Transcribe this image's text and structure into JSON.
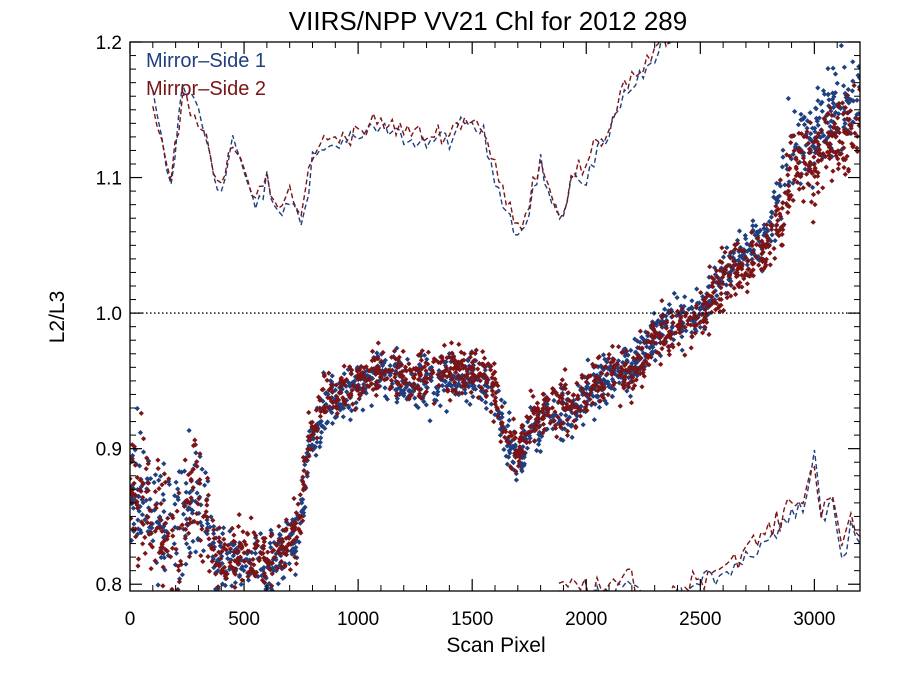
{
  "chart_data": {
    "type": "scatter",
    "title": "VIIRS/NPP VV21 Chl for 2012 289",
    "xlabel": "Scan Pixel",
    "ylabel": "L2/L3",
    "xlim": [
      0,
      3200
    ],
    "ylim": [
      0.795,
      1.2
    ],
    "x_ticks": [
      0,
      500,
      1000,
      1500,
      2000,
      2500,
      3000
    ],
    "x_tick_labels": [
      "0",
      "500",
      "1000",
      "1500",
      "2000",
      "2500",
      "3000"
    ],
    "y_ticks": [
      0.8,
      0.9,
      1.0,
      1.1,
      1.2
    ],
    "y_tick_labels": [
      "0.8",
      "0.9",
      "1.0",
      "1.1",
      "1.2"
    ],
    "reference_line": {
      "y": 1.0,
      "style": "dotted"
    },
    "legend_position": "top-left",
    "series": [
      {
        "name": "Mirror–Side 1",
        "color": "#1f3f7f",
        "marker": "diamond",
        "trend": [
          [
            0,
            0.88
          ],
          [
            60,
            0.87
          ],
          [
            120,
            0.845
          ],
          [
            200,
            0.835
          ],
          [
            280,
            0.86
          ],
          [
            330,
            0.855
          ],
          [
            380,
            0.815
          ],
          [
            450,
            0.82
          ],
          [
            520,
            0.815
          ],
          [
            600,
            0.815
          ],
          [
            680,
            0.825
          ],
          [
            740,
            0.84
          ],
          [
            780,
            0.895
          ],
          [
            850,
            0.93
          ],
          [
            950,
            0.94
          ],
          [
            1050,
            0.95
          ],
          [
            1150,
            0.955
          ],
          [
            1220,
            0.945
          ],
          [
            1300,
            0.95
          ],
          [
            1400,
            0.952
          ],
          [
            1500,
            0.953
          ],
          [
            1580,
            0.945
          ],
          [
            1640,
            0.91
          ],
          [
            1700,
            0.89
          ],
          [
            1760,
            0.915
          ],
          [
            1850,
            0.925
          ],
          [
            1950,
            0.93
          ],
          [
            2000,
            0.94
          ],
          [
            2100,
            0.955
          ],
          [
            2200,
            0.96
          ],
          [
            2300,
            0.985
          ],
          [
            2400,
            0.995
          ],
          [
            2500,
            1.0
          ],
          [
            2600,
            1.03
          ],
          [
            2700,
            1.045
          ],
          [
            2800,
            1.06
          ],
          [
            2900,
            1.12
          ],
          [
            3000,
            1.13
          ],
          [
            3100,
            1.15
          ],
          [
            3200,
            1.16
          ]
        ],
        "upper_dashed": [
          [
            100,
            1.16
          ],
          [
            180,
            1.09
          ],
          [
            230,
            1.17
          ],
          [
            300,
            1.15
          ],
          [
            350,
            1.12
          ],
          [
            400,
            1.085
          ],
          [
            450,
            1.13
          ],
          [
            500,
            1.1
          ],
          [
            550,
            1.08
          ],
          [
            600,
            1.095
          ],
          [
            650,
            1.07
          ],
          [
            700,
            1.085
          ],
          [
            750,
            1.065
          ],
          [
            800,
            1.115
          ],
          [
            900,
            1.125
          ],
          [
            1000,
            1.13
          ],
          [
            1100,
            1.135
          ],
          [
            1200,
            1.13
          ],
          [
            1300,
            1.125
          ],
          [
            1400,
            1.13
          ],
          [
            1500,
            1.14
          ],
          [
            1550,
            1.13
          ],
          [
            1600,
            1.1
          ],
          [
            1650,
            1.08
          ],
          [
            1700,
            1.055
          ],
          [
            1750,
            1.08
          ],
          [
            1800,
            1.11
          ],
          [
            1850,
            1.08
          ],
          [
            1900,
            1.07
          ],
          [
            1950,
            1.1
          ],
          [
            2000,
            1.1
          ],
          [
            2050,
            1.12
          ],
          [
            2100,
            1.13
          ],
          [
            2150,
            1.16
          ],
          [
            2200,
            1.17
          ],
          [
            2250,
            1.175
          ],
          [
            2300,
            1.19
          ],
          [
            2350,
            1.2
          ],
          [
            2400,
            1.2
          ]
        ],
        "lower_dashed": [
          [
            1880,
            0.79
          ],
          [
            1920,
            0.79
          ],
          [
            2120,
            0.79
          ],
          [
            2180,
            0.8
          ],
          [
            2250,
            0.79
          ],
          [
            2400,
            0.79
          ],
          [
            2500,
            0.8
          ],
          [
            2600,
            0.81
          ],
          [
            2700,
            0.82
          ],
          [
            2800,
            0.835
          ],
          [
            2850,
            0.84
          ],
          [
            2900,
            0.86
          ],
          [
            2950,
            0.855
          ],
          [
            3000,
            0.9
          ],
          [
            3030,
            0.85
          ],
          [
            3080,
            0.86
          ],
          [
            3120,
            0.82
          ],
          [
            3160,
            0.84
          ],
          [
            3200,
            0.83
          ]
        ]
      },
      {
        "name": "Mirror–Side 2",
        "color": "#7b1416",
        "marker": "diamond",
        "trend": [
          [
            0,
            0.875
          ],
          [
            60,
            0.865
          ],
          [
            120,
            0.84
          ],
          [
            200,
            0.83
          ],
          [
            280,
            0.865
          ],
          [
            330,
            0.86
          ],
          [
            380,
            0.818
          ],
          [
            450,
            0.824
          ],
          [
            520,
            0.82
          ],
          [
            600,
            0.818
          ],
          [
            680,
            0.828
          ],
          [
            740,
            0.845
          ],
          [
            780,
            0.9
          ],
          [
            850,
            0.935
          ],
          [
            950,
            0.945
          ],
          [
            1050,
            0.955
          ],
          [
            1150,
            0.96
          ],
          [
            1220,
            0.95
          ],
          [
            1300,
            0.955
          ],
          [
            1400,
            0.958
          ],
          [
            1500,
            0.96
          ],
          [
            1580,
            0.95
          ],
          [
            1640,
            0.915
          ],
          [
            1700,
            0.9
          ],
          [
            1760,
            0.92
          ],
          [
            1850,
            0.93
          ],
          [
            1950,
            0.935
          ],
          [
            2000,
            0.945
          ],
          [
            2100,
            0.96
          ],
          [
            2200,
            0.955
          ],
          [
            2300,
            0.98
          ],
          [
            2400,
            0.99
          ],
          [
            2500,
            0.995
          ],
          [
            2600,
            1.025
          ],
          [
            2700,
            1.035
          ],
          [
            2800,
            1.05
          ],
          [
            2900,
            1.1
          ],
          [
            3000,
            1.115
          ],
          [
            3100,
            1.13
          ],
          [
            3200,
            1.14
          ]
        ],
        "upper_dashed": [
          [
            100,
            1.15
          ],
          [
            180,
            1.1
          ],
          [
            230,
            1.165
          ],
          [
            300,
            1.14
          ],
          [
            350,
            1.115
          ],
          [
            400,
            1.09
          ],
          [
            450,
            1.125
          ],
          [
            500,
            1.105
          ],
          [
            550,
            1.085
          ],
          [
            600,
            1.1
          ],
          [
            650,
            1.075
          ],
          [
            700,
            1.09
          ],
          [
            750,
            1.07
          ],
          [
            800,
            1.12
          ],
          [
            900,
            1.13
          ],
          [
            1000,
            1.135
          ],
          [
            1100,
            1.14
          ],
          [
            1200,
            1.135
          ],
          [
            1300,
            1.13
          ],
          [
            1400,
            1.135
          ],
          [
            1500,
            1.145
          ],
          [
            1550,
            1.135
          ],
          [
            1600,
            1.105
          ],
          [
            1650,
            1.085
          ],
          [
            1700,
            1.06
          ],
          [
            1750,
            1.085
          ],
          [
            1800,
            1.115
          ],
          [
            1850,
            1.085
          ],
          [
            1900,
            1.075
          ],
          [
            1950,
            1.105
          ],
          [
            2000,
            1.105
          ],
          [
            2050,
            1.125
          ],
          [
            2100,
            1.135
          ],
          [
            2150,
            1.165
          ],
          [
            2200,
            1.175
          ],
          [
            2250,
            1.18
          ],
          [
            2300,
            1.195
          ],
          [
            2350,
            1.2
          ],
          [
            2400,
            1.2
          ]
        ],
        "lower_dashed": [
          [
            1880,
            0.795
          ],
          [
            1920,
            0.8
          ],
          [
            2120,
            0.795
          ],
          [
            2180,
            0.81
          ],
          [
            2250,
            0.79
          ],
          [
            2400,
            0.795
          ],
          [
            2500,
            0.805
          ],
          [
            2600,
            0.815
          ],
          [
            2700,
            0.825
          ],
          [
            2800,
            0.84
          ],
          [
            2850,
            0.845
          ],
          [
            2900,
            0.865
          ],
          [
            2950,
            0.86
          ],
          [
            3000,
            0.89
          ],
          [
            3030,
            0.855
          ],
          [
            3080,
            0.87
          ],
          [
            3120,
            0.825
          ],
          [
            3160,
            0.845
          ],
          [
            3200,
            0.835
          ]
        ]
      }
    ]
  }
}
